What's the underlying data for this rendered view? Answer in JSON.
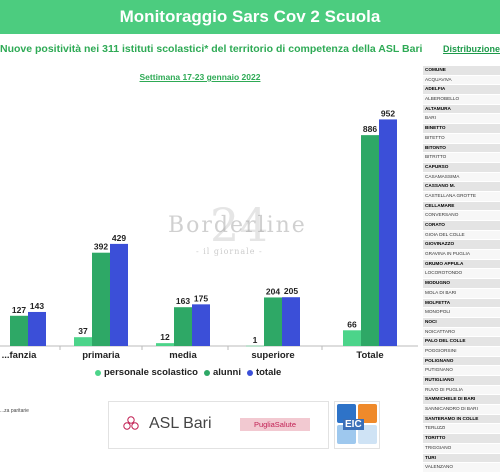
{
  "banner": {
    "title": "Monitoraggio Sars Cov 2 Scuola"
  },
  "subtitle": "Nuove positività nei 311 istituti scolastici* del territorio di competenza della ASL Bari",
  "week": "Settimana 17-23 gennaio 2022",
  "side_title": "Distribuzione te",
  "watermark": {
    "main": "Borderline",
    "number": "24",
    "sub": "- il giornale -"
  },
  "legend": [
    {
      "name": "personale scolastico",
      "color": "#4cd48a"
    },
    {
      "name": "alunni",
      "color": "#2ea866"
    },
    {
      "name": "totale",
      "color": "#3b4fd8"
    }
  ],
  "footnote": "...za paritarie",
  "logos": {
    "asl": "ASL Bari",
    "puglia": "PugliaSalute",
    "eic": "EIC"
  },
  "colors": {
    "banner": "#4ccc7f",
    "personale": "#4cd48a",
    "alunni": "#2ea866",
    "totale": "#3b4fd8"
  },
  "chart_data": {
    "type": "bar",
    "categories": [
      "...fanzia",
      "primaria",
      "media",
      "superiore",
      "Totale"
    ],
    "series": [
      {
        "name": "personale scolastico",
        "values": [
          null,
          37,
          12,
          1,
          66
        ]
      },
      {
        "name": "alunni",
        "values": [
          127,
          392,
          163,
          204,
          886
        ]
      },
      {
        "name": "totale",
        "values": [
          143,
          429,
          175,
          205,
          952
        ]
      }
    ],
    "ylim": [
      0,
      1000
    ],
    "grid": false,
    "legend_position": "bottom"
  },
  "comuni_table": {
    "header": "COMUNE",
    "rows": [
      {
        "name": "ACQUAVIVA",
        "bold": false
      },
      {
        "name": "ADELFIA",
        "bold": true
      },
      {
        "name": "ALBEROBELLO",
        "bold": false
      },
      {
        "name": "ALTAMURA",
        "bold": true
      },
      {
        "name": "BARI",
        "bold": false
      },
      {
        "name": "BINETTO",
        "bold": true
      },
      {
        "name": "BITETTO",
        "bold": false
      },
      {
        "name": "BITONTO",
        "bold": true
      },
      {
        "name": "BITRITTO",
        "bold": false
      },
      {
        "name": "CAPURSO",
        "bold": true
      },
      {
        "name": "CASAMASSIMA",
        "bold": false
      },
      {
        "name": "CASSANO M.",
        "bold": true
      },
      {
        "name": "CASTELLANA GROTTE",
        "bold": false
      },
      {
        "name": "CELLAMARE",
        "bold": true
      },
      {
        "name": "CONVERSANO",
        "bold": false
      },
      {
        "name": "CORATO",
        "bold": true
      },
      {
        "name": "GIOIA DEL COLLE",
        "bold": false
      },
      {
        "name": "GIOVINAZZO",
        "bold": true
      },
      {
        "name": "GRAVINA IN PUGLIA",
        "bold": false
      },
      {
        "name": "GRUMO APPULA",
        "bold": true
      },
      {
        "name": "LOCOROTONDO",
        "bold": false
      },
      {
        "name": "MODUGNO",
        "bold": true
      },
      {
        "name": "MOLA DI BARI",
        "bold": false
      },
      {
        "name": "MOLFETTA",
        "bold": true
      },
      {
        "name": "MONOPOLI",
        "bold": false
      },
      {
        "name": "NOCI",
        "bold": true
      },
      {
        "name": "NOICATTARO",
        "bold": false
      },
      {
        "name": "PALO DEL COLLE",
        "bold": true
      },
      {
        "name": "POGGIORSINI",
        "bold": false
      },
      {
        "name": "POLIGNANO",
        "bold": true
      },
      {
        "name": "PUTIGNANO",
        "bold": false
      },
      {
        "name": "RUTIGLIANO",
        "bold": true
      },
      {
        "name": "RUVO DI PUGLIA",
        "bold": false
      },
      {
        "name": "SAMMICHELE DI BARI",
        "bold": true
      },
      {
        "name": "SANNICANDRO DI BARI",
        "bold": false
      },
      {
        "name": "SANTERAMO IN COLLE",
        "bold": true
      },
      {
        "name": "TERLIZZI",
        "bold": false
      },
      {
        "name": "TORITTO",
        "bold": true
      },
      {
        "name": "TRIGGIANO",
        "bold": false
      },
      {
        "name": "TURI",
        "bold": true
      },
      {
        "name": "VALENZANO",
        "bold": false
      }
    ]
  }
}
